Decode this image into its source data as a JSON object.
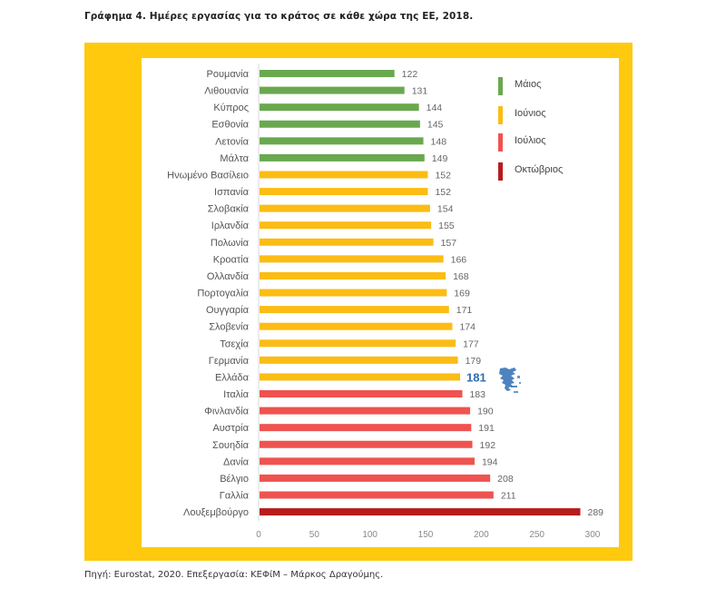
{
  "figure": {
    "title": "Γράφημα 4. Ημέρες εργασίας για το κράτος σε κάθε χώρα της ΕΕ, 2018.",
    "source": "Πηγή: Eurostat, 2020. Επεξεργασία: ΚΕΦίΜ – Μάρκος Δραγούμης."
  },
  "chart_data": {
    "type": "bar",
    "orientation": "horizontal",
    "title": "Γράφημα 4. Ημέρες εργασίας για το κράτος σε κάθε χώρα της ΕΕ, 2018.",
    "xlabel": "",
    "ylabel": "",
    "xlim": [
      0,
      300
    ],
    "xticks": [
      0,
      50,
      100,
      150,
      200,
      250,
      300
    ],
    "grid": false,
    "legend_position": "top-right",
    "legend": [
      {
        "label": "Μάιος",
        "color": "#6aa84f"
      },
      {
        "label": "Ιούνιος",
        "color": "#fbbc14"
      },
      {
        "label": "Ιούλιος",
        "color": "#ef5350"
      },
      {
        "label": "Οκτώβριος",
        "color": "#b71c1c"
      }
    ],
    "categories": [
      "Ρουμανία",
      "Λιθουανία",
      "Κύπρος",
      "Εσθονία",
      "Λετονία",
      "Μάλτα",
      "Ηνωμένο Βασίλειο",
      "Ισπανία",
      "Σλοβακία",
      "Ιρλανδία",
      "Πολωνία",
      "Κροατία",
      "Ολλανδία",
      "Πορτογαλία",
      "Ουγγαρία",
      "Σλοβενία",
      "Τσεχία",
      "Γερμανία",
      "Ελλάδα",
      "Ιταλία",
      "Φινλανδία",
      "Αυστρία",
      "Σουηδία",
      "Δανία",
      "Βέλγιο",
      "Γαλλία",
      "Λουξεμβούργο"
    ],
    "values": [
      122,
      131,
      144,
      145,
      148,
      149,
      152,
      152,
      154,
      155,
      157,
      166,
      168,
      169,
      171,
      174,
      177,
      179,
      181,
      183,
      190,
      191,
      192,
      194,
      208,
      211,
      289
    ],
    "month_group": [
      "Μάιος",
      "Μάιος",
      "Μάιος",
      "Μάιος",
      "Μάιος",
      "Μάιος",
      "Ιούνιος",
      "Ιούνιος",
      "Ιούνιος",
      "Ιούνιος",
      "Ιούνιος",
      "Ιούνιος",
      "Ιούνιος",
      "Ιούνιος",
      "Ιούνιος",
      "Ιούνιος",
      "Ιούνιος",
      "Ιούνιος",
      "Ιούνιος",
      "Ιούλιος",
      "Ιούλιος",
      "Ιούλιος",
      "Ιούλιος",
      "Ιούλιος",
      "Ιούλιος",
      "Ιούλιος",
      "Οκτώβριος"
    ],
    "highlight": {
      "category": "Ελλάδα",
      "value": 181,
      "label_color": "#2e6db4",
      "icon": "greece-map-icon"
    }
  }
}
